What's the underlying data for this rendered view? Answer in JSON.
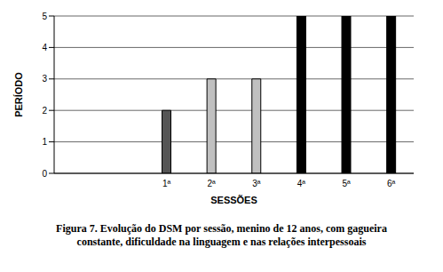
{
  "chart_data": {
    "type": "bar",
    "title": "Figura 7. Evolução do DSM por sessão, menino de 12 anos, com gagueira constante, dificuldade na linguagem e nas relações interpessoais",
    "x_label": "SESSÕES",
    "y_label": "PERÍODO",
    "categories": [
      null,
      null,
      "1ª",
      "2ª",
      "3ª",
      "4ª",
      "5ª",
      "6ª"
    ],
    "values": [
      null,
      null,
      2,
      3,
      3,
      5,
      5,
      5
    ],
    "colors": [
      null,
      null,
      "#555555",
      "#c0c0c0",
      "#c0c0c0",
      "#000000",
      "#000000",
      "#000000"
    ],
    "ylim": [
      0,
      5
    ],
    "yticks": [
      0,
      1,
      2,
      3,
      4,
      5
    ],
    "grid": true
  }
}
